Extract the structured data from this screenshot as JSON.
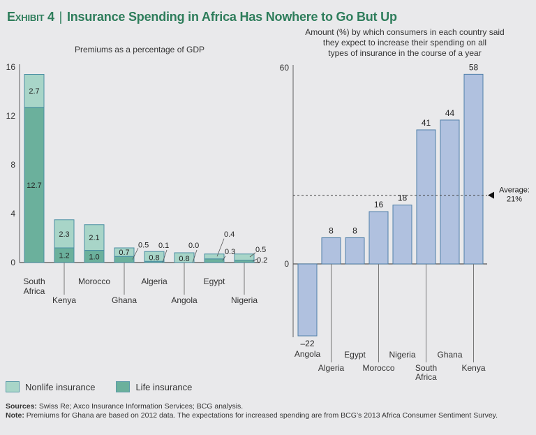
{
  "header": {
    "exhibit": "Exhibit 4",
    "separator": "|",
    "title": "Insurance Spending in Africa Has Nowhere to Go But Up"
  },
  "colors": {
    "nonlife": "#a8d5c8",
    "life": "#6bb09c",
    "bar_border": "#4b8fa3",
    "right_bar": "#b0c1df",
    "right_border": "#4f7fa8",
    "title": "#2e7d5b"
  },
  "chart_data": [
    {
      "type": "bar",
      "stacked": true,
      "title": "Premiums as a percentage of GDP",
      "xlabel": "",
      "ylabel": "",
      "ylim": [
        0,
        16
      ],
      "yticks": [
        0,
        4,
        8,
        12,
        16
      ],
      "categories": [
        "South Africa",
        "Kenya",
        "Morocco",
        "Ghana",
        "Algeria",
        "Angola",
        "Egypt",
        "Nigeria"
      ],
      "series": [
        {
          "name": "Life insurance",
          "values": [
            12.7,
            1.2,
            1.0,
            0.5,
            0.1,
            0.0,
            0.3,
            0.2
          ],
          "labels": [
            "12.7",
            "1.2",
            "1.0",
            "0.5",
            "0.1",
            "0.0",
            "0.3",
            "0.2"
          ]
        },
        {
          "name": "Nonlife insurance",
          "values": [
            2.7,
            2.3,
            2.1,
            0.7,
            0.8,
            0.8,
            0.4,
            0.5
          ],
          "labels": [
            "2.7",
            "2.3",
            "2.1",
            "0.7",
            "0.8",
            "0.8",
            "0.4",
            "0.5"
          ]
        }
      ],
      "legend": [
        "Nonlife insurance",
        "Life insurance"
      ],
      "legend_position": "bottom-left",
      "grid": false
    },
    {
      "type": "bar",
      "title": "Amount (%) by which consumers in each country said they expect to increase their spending on all types of insurance in the course of a year",
      "title_lines": [
        "Amount (%) by which consumers in each country said",
        "they expect to increase their spending on all",
        "types of insurance in the course of a year"
      ],
      "ylim": [
        -22,
        60
      ],
      "yticks": [
        0,
        60
      ],
      "categories": [
        "Angola",
        "Algeria",
        "Egypt",
        "Morocco",
        "Nigeria",
        "South Africa",
        "Ghana",
        "Kenya"
      ],
      "values": [
        -22,
        8,
        8,
        16,
        18,
        41,
        44,
        58
      ],
      "labels": [
        "–22",
        "8",
        "8",
        "16",
        "18",
        "41",
        "44",
        "58"
      ],
      "reference_line": {
        "value": 21,
        "label_lines": [
          "Average:",
          "21%"
        ]
      },
      "grid": false
    }
  ],
  "footer": {
    "sources_label": "Sources:",
    "sources_text": " Swiss Re; Axco Insurance Information Services; BCG analysis.",
    "note_label": "Note:",
    "note_text": " Premiums for Ghana are based on 2012 data. The expectations for increased spending are from BCG’s 2013 Africa Consumer Sentiment Survey."
  }
}
